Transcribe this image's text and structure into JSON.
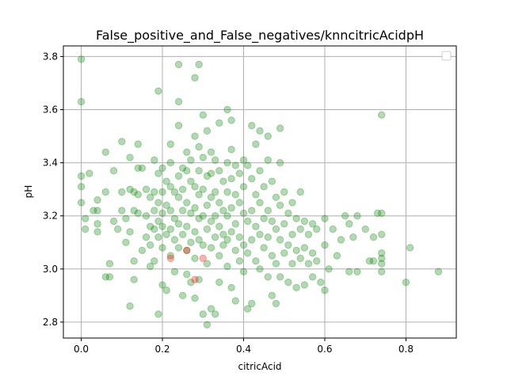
{
  "chart_data": {
    "type": "scatter",
    "title": "False_positive_and_False_negatives/knncitricAcidpH",
    "xlabel": "citricAcid",
    "ylabel": "pH",
    "xlim": [
      -0.044,
      0.924
    ],
    "ylim": [
      2.74,
      3.84
    ],
    "xticks": [
      0.0,
      0.2,
      0.4,
      0.6,
      0.8
    ],
    "xtick_labels": [
      "0.0",
      "0.2",
      "0.4",
      "0.6",
      "0.8"
    ],
    "yticks": [
      2.8,
      3.0,
      3.2,
      3.4,
      3.6,
      3.8
    ],
    "ytick_labels": [
      "2.8",
      "3.0",
      "3.2",
      "3.4",
      "3.6",
      "3.8"
    ],
    "grid": true,
    "legend": "upper-right, empty",
    "series": [
      {
        "color": "#008000",
        "alpha": 0.3,
        "points": [
          [
            0.0,
            3.79
          ],
          [
            0.0,
            3.63
          ],
          [
            0.0,
            3.35
          ],
          [
            0.0,
            3.31
          ],
          [
            0.0,
            3.25
          ],
          [
            0.01,
            3.19
          ],
          [
            0.01,
            3.15
          ],
          [
            0.02,
            3.36
          ],
          [
            0.03,
            3.22
          ],
          [
            0.04,
            3.26
          ],
          [
            0.04,
            3.22
          ],
          [
            0.04,
            3.17
          ],
          [
            0.04,
            3.14
          ],
          [
            0.06,
            3.44
          ],
          [
            0.06,
            3.29
          ],
          [
            0.06,
            2.97
          ],
          [
            0.07,
            3.02
          ],
          [
            0.07,
            2.97
          ],
          [
            0.08,
            3.18
          ],
          [
            0.08,
            3.37
          ],
          [
            0.09,
            3.15
          ],
          [
            0.1,
            3.48
          ],
          [
            0.1,
            3.29
          ],
          [
            0.1,
            3.22
          ],
          [
            0.11,
            3.19
          ],
          [
            0.11,
            3.1
          ],
          [
            0.12,
            3.42
          ],
          [
            0.12,
            3.3
          ],
          [
            0.12,
            3.14
          ],
          [
            0.12,
            2.86
          ],
          [
            0.13,
            3.29
          ],
          [
            0.13,
            3.22
          ],
          [
            0.13,
            3.03
          ],
          [
            0.13,
            2.96
          ],
          [
            0.14,
            3.47
          ],
          [
            0.14,
            3.38
          ],
          [
            0.14,
            3.28
          ],
          [
            0.14,
            3.21
          ],
          [
            0.15,
            3.07
          ],
          [
            0.15,
            3.38
          ],
          [
            0.16,
            3.3
          ],
          [
            0.16,
            3.2
          ],
          [
            0.16,
            3.12
          ],
          [
            0.17,
            3.27
          ],
          [
            0.17,
            3.16
          ],
          [
            0.17,
            3.09
          ],
          [
            0.17,
            3.01
          ],
          [
            0.18,
            3.41
          ],
          [
            0.18,
            3.29
          ],
          [
            0.18,
            3.22
          ],
          [
            0.18,
            3.15
          ],
          [
            0.18,
            3.03
          ],
          [
            0.19,
            3.67
          ],
          [
            0.19,
            3.36
          ],
          [
            0.19,
            3.25
          ],
          [
            0.19,
            3.18
          ],
          [
            0.19,
            3.12
          ],
          [
            0.19,
            2.83
          ],
          [
            0.2,
            3.38
          ],
          [
            0.2,
            3.29
          ],
          [
            0.2,
            3.21
          ],
          [
            0.2,
            3.16
          ],
          [
            0.2,
            3.08
          ],
          [
            0.2,
            2.94
          ],
          [
            0.21,
            3.33
          ],
          [
            0.21,
            3.24
          ],
          [
            0.21,
            3.13
          ],
          [
            0.21,
            2.92
          ],
          [
            0.22,
            3.47
          ],
          [
            0.22,
            3.4
          ],
          [
            0.22,
            3.31
          ],
          [
            0.22,
            3.22
          ],
          [
            0.22,
            3.15
          ],
          [
            0.22,
            3.05
          ],
          [
            0.23,
            3.29
          ],
          [
            0.23,
            3.19
          ],
          [
            0.23,
            3.11
          ],
          [
            0.23,
            2.99
          ],
          [
            0.24,
            3.77
          ],
          [
            0.24,
            3.63
          ],
          [
            0.24,
            3.54
          ],
          [
            0.24,
            3.35
          ],
          [
            0.24,
            3.27
          ],
          [
            0.24,
            3.17
          ],
          [
            0.24,
            3.08
          ],
          [
            0.25,
            3.38
          ],
          [
            0.25,
            3.3
          ],
          [
            0.25,
            3.22
          ],
          [
            0.25,
            3.13
          ],
          [
            0.25,
            2.9
          ],
          [
            0.26,
            3.44
          ],
          [
            0.26,
            3.37
          ],
          [
            0.26,
            3.25
          ],
          [
            0.26,
            3.16
          ],
          [
            0.26,
            3.07
          ],
          [
            0.26,
            2.98
          ],
          [
            0.27,
            3.41
          ],
          [
            0.27,
            3.33
          ],
          [
            0.27,
            3.21
          ],
          [
            0.27,
            3.1
          ],
          [
            0.27,
            2.95
          ],
          [
            0.28,
            3.72
          ],
          [
            0.28,
            3.5
          ],
          [
            0.28,
            3.31
          ],
          [
            0.28,
            3.23
          ],
          [
            0.28,
            3.14
          ],
          [
            0.28,
            3.04
          ],
          [
            0.28,
            2.89
          ],
          [
            0.29,
            3.77
          ],
          [
            0.29,
            3.46
          ],
          [
            0.29,
            3.37
          ],
          [
            0.29,
            3.28
          ],
          [
            0.29,
            3.19
          ],
          [
            0.29,
            3.11
          ],
          [
            0.29,
            2.96
          ],
          [
            0.3,
            3.58
          ],
          [
            0.3,
            3.42
          ],
          [
            0.3,
            3.3
          ],
          [
            0.3,
            3.2
          ],
          [
            0.3,
            3.09
          ],
          [
            0.3,
            2.83
          ],
          [
            0.31,
            3.52
          ],
          [
            0.31,
            3.35
          ],
          [
            0.31,
            3.24
          ],
          [
            0.31,
            3.15
          ],
          [
            0.31,
            3.02
          ],
          [
            0.31,
            2.79
          ],
          [
            0.32,
            3.44
          ],
          [
            0.32,
            3.36
          ],
          [
            0.32,
            3.27
          ],
          [
            0.32,
            3.18
          ],
          [
            0.32,
            3.08
          ],
          [
            0.32,
            2.85
          ],
          [
            0.33,
            3.41
          ],
          [
            0.33,
            3.29
          ],
          [
            0.33,
            3.2
          ],
          [
            0.33,
            3.12
          ],
          [
            0.33,
            2.83
          ],
          [
            0.34,
            3.55
          ],
          [
            0.34,
            3.37
          ],
          [
            0.34,
            3.25
          ],
          [
            0.34,
            3.16
          ],
          [
            0.34,
            3.05
          ],
          [
            0.34,
            2.95
          ],
          [
            0.35,
            3.33
          ],
          [
            0.35,
            3.22
          ],
          [
            0.35,
            3.13
          ],
          [
            0.35,
            3.09
          ],
          [
            0.36,
            3.6
          ],
          [
            0.36,
            3.4
          ],
          [
            0.36,
            3.29
          ],
          [
            0.36,
            3.2
          ],
          [
            0.36,
            3.11
          ],
          [
            0.36,
            3.01
          ],
          [
            0.37,
            3.56
          ],
          [
            0.37,
            3.45
          ],
          [
            0.37,
            3.34
          ],
          [
            0.37,
            3.23
          ],
          [
            0.37,
            3.14
          ],
          [
            0.37,
            2.93
          ],
          [
            0.38,
            3.39
          ],
          [
            0.38,
            3.28
          ],
          [
            0.38,
            3.17
          ],
          [
            0.38,
            3.07
          ],
          [
            0.38,
            2.88
          ],
          [
            0.39,
            3.36
          ],
          [
            0.39,
            3.25
          ],
          [
            0.39,
            3.12
          ],
          [
            0.39,
            3.03
          ],
          [
            0.4,
            3.41
          ],
          [
            0.4,
            3.31
          ],
          [
            0.4,
            3.21
          ],
          [
            0.4,
            3.09
          ],
          [
            0.4,
            2.99
          ],
          [
            0.41,
            3.39
          ],
          [
            0.41,
            3.18
          ],
          [
            0.41,
            3.06
          ],
          [
            0.41,
            2.85
          ],
          [
            0.42,
            3.54
          ],
          [
            0.42,
            3.34
          ],
          [
            0.42,
            3.22
          ],
          [
            0.42,
            3.11
          ],
          [
            0.42,
            2.87
          ],
          [
            0.43,
            3.47
          ],
          [
            0.43,
            3.28
          ],
          [
            0.43,
            3.16
          ],
          [
            0.43,
            3.03
          ],
          [
            0.44,
            3.52
          ],
          [
            0.44,
            3.37
          ],
          [
            0.44,
            3.25
          ],
          [
            0.44,
            3.13
          ],
          [
            0.44,
            3.0
          ],
          [
            0.45,
            3.31
          ],
          [
            0.45,
            3.19
          ],
          [
            0.45,
            3.08
          ],
          [
            0.46,
            3.5
          ],
          [
            0.46,
            3.41
          ],
          [
            0.46,
            3.22
          ],
          [
            0.46,
            3.12
          ],
          [
            0.46,
            2.97
          ],
          [
            0.47,
            3.33
          ],
          [
            0.47,
            3.18
          ],
          [
            0.47,
            3.05
          ],
          [
            0.47,
            2.9
          ],
          [
            0.48,
            3.27
          ],
          [
            0.48,
            3.15
          ],
          [
            0.48,
            3.02
          ],
          [
            0.48,
            2.87
          ],
          [
            0.49,
            3.53
          ],
          [
            0.49,
            3.4
          ],
          [
            0.49,
            3.24
          ],
          [
            0.49,
            3.11
          ],
          [
            0.49,
            2.97
          ],
          [
            0.5,
            3.29
          ],
          [
            0.5,
            3.17
          ],
          [
            0.5,
            3.06
          ],
          [
            0.51,
            3.21
          ],
          [
            0.51,
            3.09
          ],
          [
            0.51,
            2.95
          ],
          [
            0.52,
            3.25
          ],
          [
            0.52,
            3.13
          ],
          [
            0.52,
            3.02
          ],
          [
            0.53,
            3.19
          ],
          [
            0.53,
            3.07
          ],
          [
            0.53,
            2.93
          ],
          [
            0.54,
            3.29
          ],
          [
            0.54,
            3.15
          ],
          [
            0.54,
            3.04
          ],
          [
            0.55,
            3.18
          ],
          [
            0.55,
            3.08
          ],
          [
            0.55,
            2.94
          ],
          [
            0.56,
            3.13
          ],
          [
            0.56,
            3.02
          ],
          [
            0.57,
            3.17
          ],
          [
            0.57,
            3.06
          ],
          [
            0.57,
            2.97
          ],
          [
            0.58,
            3.15
          ],
          [
            0.58,
            3.03
          ],
          [
            0.59,
            2.95
          ],
          [
            0.6,
            3.19
          ],
          [
            0.6,
            3.09
          ],
          [
            0.6,
            2.92
          ],
          [
            0.61,
            3.0
          ],
          [
            0.62,
            3.15
          ],
          [
            0.63,
            3.05
          ],
          [
            0.64,
            3.11
          ],
          [
            0.65,
            3.2
          ],
          [
            0.66,
            3.17
          ],
          [
            0.66,
            2.99
          ],
          [
            0.67,
            3.12
          ],
          [
            0.68,
            3.2
          ],
          [
            0.68,
            2.99
          ],
          [
            0.7,
            3.15
          ],
          [
            0.71,
            3.03
          ],
          [
            0.72,
            3.12
          ],
          [
            0.72,
            3.03
          ],
          [
            0.73,
            3.21
          ],
          [
            0.74,
            3.58
          ],
          [
            0.74,
            3.21
          ],
          [
            0.74,
            3.13
          ],
          [
            0.74,
            3.06
          ],
          [
            0.74,
            3.04
          ],
          [
            0.74,
            3.02
          ],
          [
            0.74,
            2.99
          ],
          [
            0.8,
            2.95
          ],
          [
            0.81,
            3.08
          ],
          [
            0.88,
            2.99
          ]
        ]
      },
      {
        "color": "#ff0000",
        "alpha": 0.3,
        "points": [
          [
            0.22,
            3.04
          ],
          [
            0.26,
            3.07
          ],
          [
            0.28,
            2.96
          ],
          [
            0.3,
            3.04
          ]
        ]
      }
    ]
  }
}
